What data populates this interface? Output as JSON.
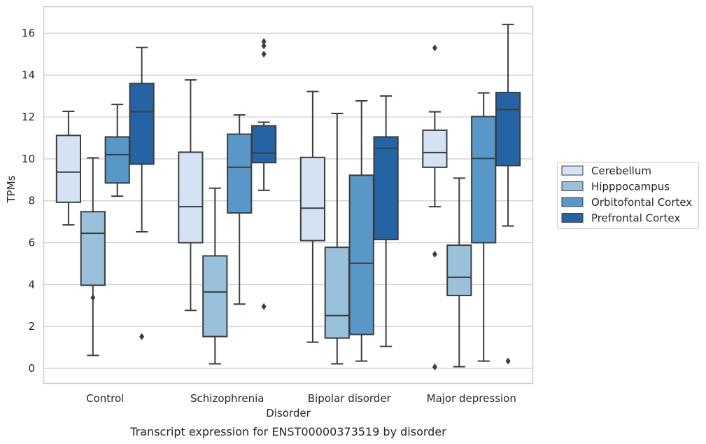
{
  "chart_data": {
    "type": "box",
    "title": "Transcript expression for ENST00000373519 by disorder",
    "xlabel": "Disorder",
    "ylabel": "TPMs",
    "ylim": [
      -0.7,
      17.25
    ],
    "yticks": [
      0,
      2,
      4,
      6,
      8,
      10,
      12,
      14,
      16
    ],
    "grid": true,
    "legend_position": "right",
    "categories": [
      "Control",
      "Schizophrenia",
      "Bipolar disorder",
      "Major depression"
    ],
    "series": [
      {
        "name": "Cerebellum",
        "color": "#d4e3f3",
        "boxes": [
          {
            "whisker_low": 6.85,
            "q1": 7.93,
            "median": 9.37,
            "q3": 11.12,
            "whisker_high": 12.27,
            "outliers": []
          },
          {
            "whisker_low": 2.77,
            "q1": 6.0,
            "median": 7.72,
            "q3": 10.32,
            "whisker_high": 13.77,
            "outliers": []
          },
          {
            "whisker_low": 1.25,
            "q1": 6.1,
            "median": 7.65,
            "q3": 10.07,
            "whisker_high": 13.22,
            "outliers": []
          },
          {
            "whisker_low": 7.72,
            "q1": 9.6,
            "median": 10.3,
            "q3": 11.37,
            "whisker_high": 12.25,
            "outliers": [
              15.3,
              5.45,
              0.07
            ]
          }
        ]
      },
      {
        "name": "Hipppocampus",
        "color": "#9ac1dc",
        "boxes": [
          {
            "whisker_low": 0.62,
            "q1": 3.97,
            "median": 6.45,
            "q3": 7.48,
            "whisker_high": 10.05,
            "outliers": [
              3.38
            ]
          },
          {
            "whisker_low": 0.22,
            "q1": 1.52,
            "median": 3.65,
            "q3": 5.37,
            "whisker_high": 8.6,
            "outliers": []
          },
          {
            "whisker_low": 0.22,
            "q1": 1.45,
            "median": 2.52,
            "q3": 5.78,
            "whisker_high": 12.17,
            "outliers": []
          },
          {
            "whisker_low": 0.08,
            "q1": 3.48,
            "median": 4.35,
            "q3": 5.88,
            "whisker_high": 9.08,
            "outliers": []
          }
        ]
      },
      {
        "name": "Orbitofontal Cortex",
        "color": "#5898c8",
        "boxes": [
          {
            "whisker_low": 8.22,
            "q1": 8.85,
            "median": 10.2,
            "q3": 11.05,
            "whisker_high": 12.6,
            "outliers": []
          },
          {
            "whisker_low": 3.07,
            "q1": 7.42,
            "median": 9.6,
            "q3": 11.18,
            "whisker_high": 12.1,
            "outliers": []
          },
          {
            "whisker_low": 0.35,
            "q1": 1.62,
            "median": 5.02,
            "q3": 9.22,
            "whisker_high": 12.77,
            "outliers": []
          },
          {
            "whisker_low": 0.35,
            "q1": 6.0,
            "median": 10.02,
            "q3": 12.02,
            "whisker_high": 13.15,
            "outliers": []
          }
        ]
      },
      {
        "name": "Prefrontal Cortex",
        "color": "#2464a5",
        "boxes": [
          {
            "whisker_low": 6.52,
            "q1": 9.75,
            "median": 12.25,
            "q3": 13.6,
            "whisker_high": 15.32,
            "outliers": [
              1.52
            ]
          },
          {
            "whisker_low": 8.5,
            "q1": 9.82,
            "median": 10.28,
            "q3": 11.58,
            "whisker_high": 11.75,
            "outliers": [
              15.6,
              15.4,
              15.0,
              2.95
            ]
          },
          {
            "whisker_low": 1.05,
            "q1": 6.15,
            "median": 10.5,
            "q3": 11.05,
            "whisker_high": 13.0,
            "outliers": []
          },
          {
            "whisker_low": 6.8,
            "q1": 9.68,
            "median": 12.35,
            "q3": 13.17,
            "whisker_high": 16.42,
            "outliers": [
              0.35
            ]
          }
        ]
      }
    ]
  }
}
